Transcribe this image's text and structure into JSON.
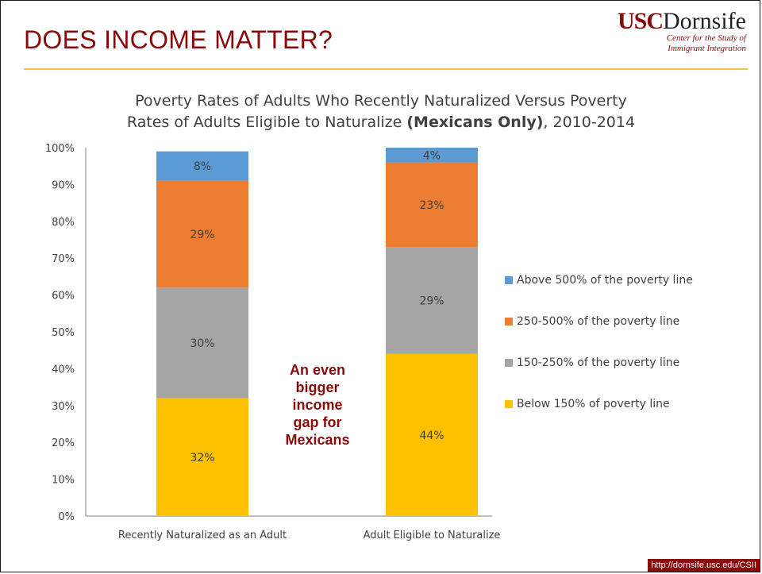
{
  "slide": {
    "title": "DOES INCOME MATTER?",
    "logo_usc": "USC",
    "logo_dornsife": "Dornsife",
    "logo_sub_line1": "Center for the Study of",
    "logo_sub_line2": "Immigrant Integration",
    "footer_url": "http://dornsife.usc.edu/CSII"
  },
  "chart_data": {
    "type": "bar",
    "stacked": true,
    "title_line1": "Poverty Rates of Adults Who Recently Naturalized Versus Poverty",
    "title_line2_pre": "Rates of Adults Eligible to Naturalize ",
    "title_line2_bold": "(Mexicans Only)",
    "title_line2_post": ", 2010-2014",
    "categories": [
      "Recently Naturalized as an Adult",
      "Adult Eligible to Naturalize"
    ],
    "ylim": [
      0,
      100
    ],
    "yticks": [
      "0%",
      "10%",
      "20%",
      "30%",
      "40%",
      "50%",
      "60%",
      "70%",
      "80%",
      "90%",
      "100%"
    ],
    "series": [
      {
        "name": "Below 150% of poverty line",
        "color": "#FFC000",
        "values": [
          32,
          44
        ]
      },
      {
        "name": "150-250% of the poverty line",
        "color": "#A5A5A5",
        "values": [
          30,
          29
        ]
      },
      {
        "name": "250-500% of the poverty line",
        "color": "#ED7D31",
        "values": [
          29,
          23
        ]
      },
      {
        "name": "Above 500% of the poverty line",
        "color": "#5B9BD5",
        "values": [
          8,
          4
        ]
      }
    ],
    "legend_order": [
      3,
      2,
      1,
      0
    ],
    "legend_position": "right",
    "annotation": [
      "An even",
      "bigger",
      "income",
      "gap for",
      "Mexicans"
    ]
  }
}
